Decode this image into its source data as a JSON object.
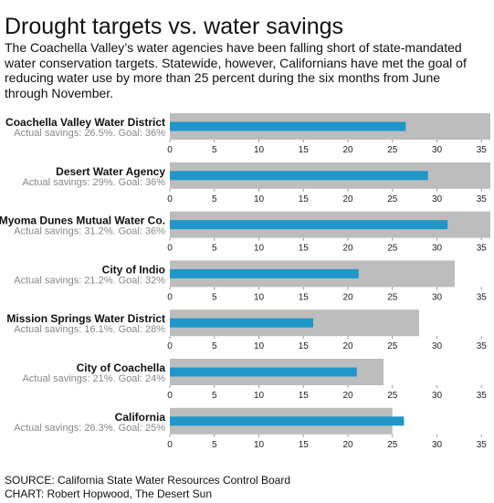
{
  "chart_data": {
    "type": "bullet",
    "title": "Drought targets vs. water savings",
    "subtitle": "The Coachella Valley’s water agencies have been falling short of state-mandated water conservation targets. Statewide, however, Californians have met the goal of reducing water use by more than 25 percent during the six months from June through November.",
    "categories": [
      "Coachella Valley Water District",
      "Desert Water Agency",
      "Myoma Dunes Mutual Water Co.",
      "City of Indio",
      "Mission Springs Water District",
      "City of Coachella",
      "California"
    ],
    "category_notes": [
      "Actual savings: 26.5%. Goal: 36%",
      "Actual savings: 29%. Goal: 36%",
      "Actual savings: 31.2%. Goal: 36%",
      "Actual savings: 21.2%. Goal: 32%",
      "Actual savings: 16.1%. Goal: 28%",
      "Actual savings: 21%. Goal: 24%",
      "Actual savings: 26.3%. Goal: 25%"
    ],
    "series": [
      {
        "color": "#1f97c9",
        "values": [
          26.5,
          29,
          31.2,
          21.2,
          16.1,
          21,
          26.3
        ]
      },
      {
        "color": "#bdbdbd",
        "values": [
          36,
          36,
          36,
          32,
          28,
          24,
          25
        ]
      }
    ],
    "xlim": [
      0,
      36
    ],
    "xticks": [
      0,
      5,
      10,
      15,
      20,
      25,
      30,
      35
    ],
    "source": "SOURCE: California State Water Resources Control Board",
    "credit": "CHART: Robert Hopwood, The Desert Sun"
  }
}
